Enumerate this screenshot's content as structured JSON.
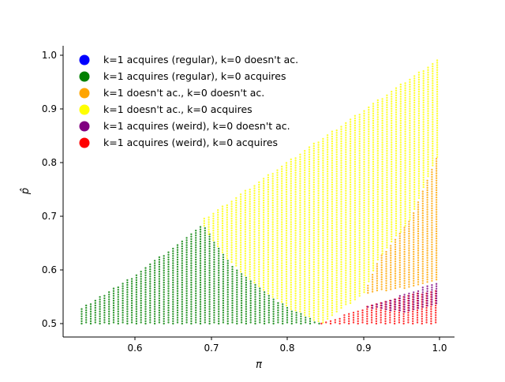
{
  "chart_data": {
    "type": "scatter",
    "title": "",
    "xlabel": "π",
    "ylabel": "p̂",
    "xlim": [
      0.51,
      1.02
    ],
    "ylim": [
      0.478,
      1.018
    ],
    "x_ticks": [
      "0.6",
      "0.7",
      "0.8",
      "0.9",
      "1.0"
    ],
    "x_tick_values": [
      0.6,
      0.7,
      0.8,
      0.9,
      1.0
    ],
    "y_ticks": [
      "0.5",
      "0.6",
      "0.7",
      "0.8",
      "0.9",
      "1.0"
    ],
    "y_tick_values": [
      0.5,
      0.6,
      0.7,
      0.8,
      0.9,
      1.0
    ],
    "grid": false,
    "legend_position": "top-left",
    "series": [
      {
        "name": "k=1 acquires (regular), k=0 doesn't ac.",
        "color": "#0000ff",
        "region": []
      },
      {
        "name": "k=1 acquires (regular), k=0 acquires",
        "color": "#008000",
        "region": [
          [
            0.53,
            0.5
          ],
          [
            0.53,
            0.53
          ],
          [
            0.6,
            0.59
          ],
          [
            0.69,
            0.685
          ],
          [
            0.72,
            0.62
          ],
          [
            0.76,
            0.57
          ],
          [
            0.8,
            0.53
          ],
          [
            0.845,
            0.5
          ]
        ]
      },
      {
        "name": "k=1 doesn't ac., k=0 doesn't ac.",
        "color": "#ffa500",
        "region": [
          [
            0.9,
            0.555
          ],
          [
            0.92,
            0.62
          ],
          [
            0.96,
            0.69
          ],
          [
            1.0,
            0.82
          ],
          [
            1.0,
            0.58
          ],
          [
            0.95,
            0.565
          ]
        ]
      },
      {
        "name": "k=1 doesn't ac., k=0 acquires",
        "color": "#ffff00",
        "region": [
          [
            0.685,
            0.69
          ],
          [
            0.845,
            0.845
          ],
          [
            1.0,
            0.995
          ],
          [
            1.0,
            0.82
          ],
          [
            0.96,
            0.69
          ],
          [
            0.92,
            0.62
          ],
          [
            0.9,
            0.555
          ],
          [
            0.845,
            0.5
          ],
          [
            0.8,
            0.53
          ],
          [
            0.76,
            0.57
          ],
          [
            0.72,
            0.62
          ]
        ]
      },
      {
        "name": "k=1 acquires (weird), k=0 doesn't ac.",
        "color": "#800080",
        "region": [
          [
            0.9,
            0.53
          ],
          [
            0.935,
            0.545
          ],
          [
            1.0,
            0.58
          ],
          [
            1.0,
            0.535
          ],
          [
            0.96,
            0.52
          ]
        ]
      },
      {
        "name": "k=1 acquires (weird), k=0 acquires",
        "color": "#ff0000",
        "region": [
          [
            0.845,
            0.5
          ],
          [
            0.93,
            0.545
          ],
          [
            1.0,
            0.565
          ],
          [
            1.0,
            0.5
          ]
        ]
      }
    ]
  }
}
